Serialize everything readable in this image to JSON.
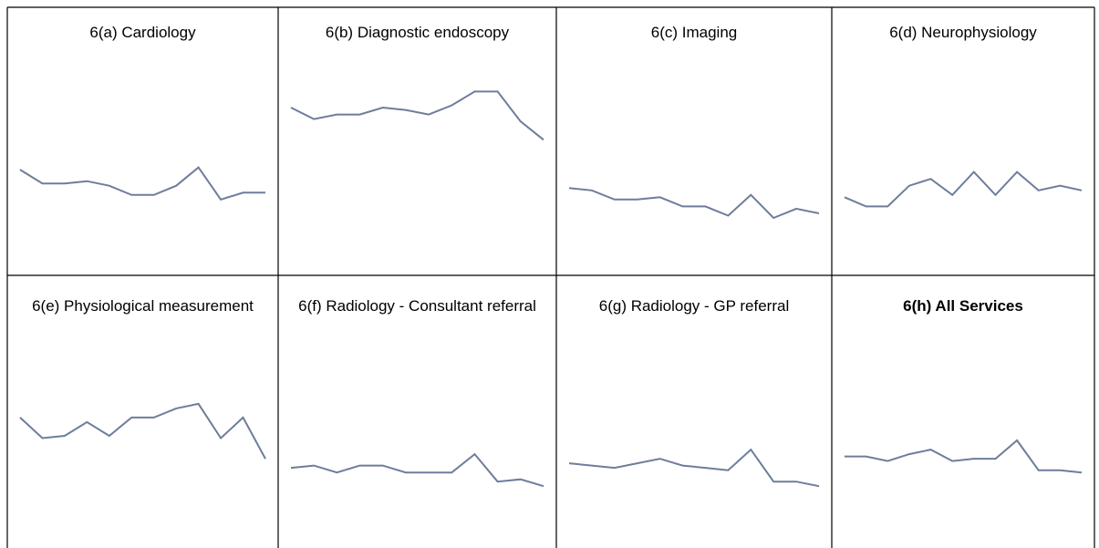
{
  "chart_data": [
    {
      "type": "line",
      "title": "6(a) Cardiology",
      "values": [
        46,
        40,
        40,
        41,
        39,
        35,
        35,
        39,
        47,
        33,
        36,
        36
      ],
      "ylim": [
        0,
        100
      ],
      "color": "#6d7d9b"
    },
    {
      "type": "line",
      "title": "6(b) Diagnostic endoscopy",
      "values": [
        73,
        68,
        70,
        70,
        73,
        72,
        70,
        74,
        80,
        80,
        67,
        59
      ],
      "ylim": [
        0,
        100
      ],
      "color": "#6d7d9b"
    },
    {
      "type": "line",
      "title": "6(c) Imaging",
      "values": [
        38,
        37,
        33,
        33,
        34,
        30,
        30,
        26,
        35,
        25,
        29,
        27
      ],
      "ylim": [
        0,
        100
      ],
      "color": "#6d7d9b"
    },
    {
      "type": "line",
      "title": "6(d) Neurophysiology",
      "values": [
        34,
        30,
        30,
        39,
        42,
        35,
        45,
        35,
        45,
        37,
        39,
        37
      ],
      "ylim": [
        0,
        100
      ],
      "color": "#6d7d9b"
    },
    {
      "type": "line",
      "title": "6(e) Physiological measurement",
      "values": [
        57,
        48,
        49,
        55,
        49,
        57,
        57,
        61,
        63,
        48,
        57,
        39
      ],
      "ylim": [
        0,
        100
      ],
      "color": "#6d7d9b"
    },
    {
      "type": "line",
      "title": "6(f) Radiology - Consultant referral",
      "values": [
        35,
        36,
        33,
        36,
        36,
        33,
        33,
        33,
        41,
        29,
        30,
        27
      ],
      "ylim": [
        0,
        100
      ],
      "color": "#6d7d9b"
    },
    {
      "type": "line",
      "title": "6(g) Radiology - GP referral",
      "values": [
        37,
        36,
        35,
        37,
        39,
        36,
        35,
        34,
        43,
        29,
        29,
        27
      ],
      "ylim": [
        0,
        100
      ],
      "color": "#6d7d9b"
    },
    {
      "type": "line",
      "title": "6(h) All Services",
      "title_bold": true,
      "values": [
        40,
        40,
        38,
        41,
        43,
        38,
        39,
        39,
        47,
        34,
        34,
        33
      ],
      "ylim": [
        0,
        100
      ],
      "color": "#6d7d9b"
    }
  ]
}
